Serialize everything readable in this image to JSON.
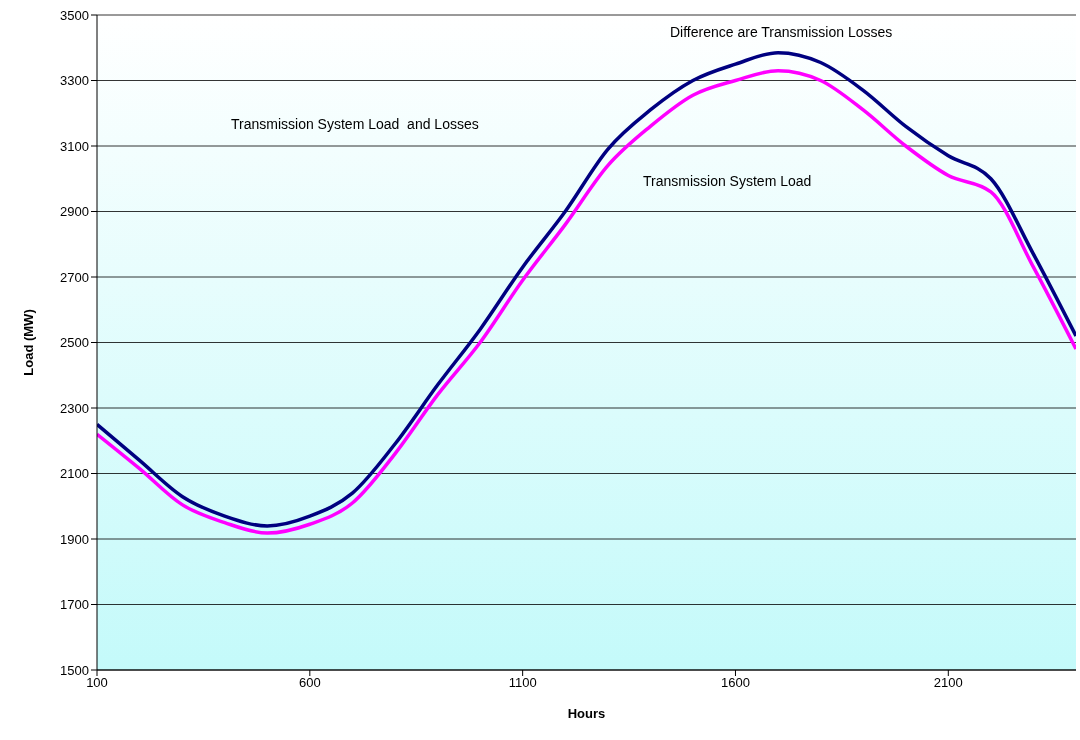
{
  "chart_data": {
    "type": "line",
    "xlabel": "Hours",
    "ylabel": "Load (MW)",
    "x": [
      100,
      200,
      300,
      400,
      500,
      600,
      700,
      800,
      900,
      1000,
      1100,
      1200,
      1300,
      1400,
      1500,
      1600,
      1700,
      1800,
      1900,
      2000,
      2100,
      2200,
      2300,
      2400
    ],
    "series": [
      {
        "color": "#000080",
        "values": [
          2250,
          2140,
          2030,
          1970,
          1940,
          1970,
          2040,
          2190,
          2370,
          2540,
          2730,
          2900,
          3090,
          3210,
          3300,
          3350,
          3385,
          3355,
          3270,
          3160,
          3070,
          3000,
          2770,
          2520
        ]
      },
      {
        "color": "#ff00ff",
        "values": [
          2220,
          2115,
          2005,
          1950,
          1918,
          1945,
          2010,
          2160,
          2340,
          2500,
          2690,
          2860,
          3040,
          3160,
          3255,
          3300,
          3330,
          3300,
          3210,
          3100,
          3010,
          2960,
          2730,
          2480
        ]
      }
    ],
    "xlim": [
      100,
      2400
    ],
    "xticks": [
      100,
      600,
      1100,
      1600,
      2100
    ],
    "ylim": [
      1500,
      3500
    ],
    "yticks": [
      1500,
      1700,
      1900,
      2100,
      2300,
      2500,
      2700,
      2900,
      3100,
      3300,
      3500
    ],
    "grid": "y",
    "legend": false,
    "annotations": [
      "Difference are Transmission Losses",
      "Transmission System Load  and Losses",
      "Transmission System Load"
    ]
  }
}
